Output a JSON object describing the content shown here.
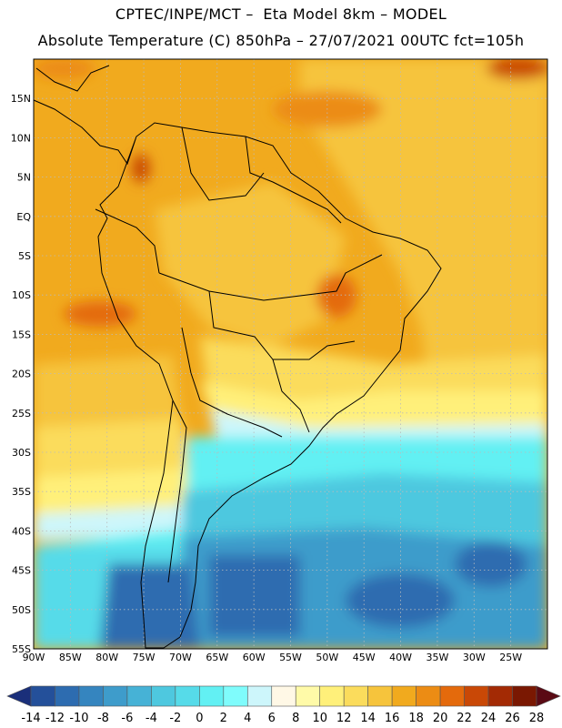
{
  "header": {
    "line1": "CPTEC/INPE/MCT –  Eta Model 8km – MODEL",
    "line2": "Absolute Temperature (C) 850hPa – 27/07/2021 00UTC fct=105h"
  },
  "map": {
    "lon_range": [
      -90,
      -20
    ],
    "lat_range": [
      -55,
      20
    ],
    "lat_ticks": [
      "15N",
      "10N",
      "5N",
      "EQ",
      "5S",
      "10S",
      "15S",
      "20S",
      "25S",
      "30S",
      "35S",
      "40S",
      "45S",
      "50S",
      "55S"
    ],
    "lon_ticks": [
      "90W",
      "85W",
      "80W",
      "75W",
      "70W",
      "65W",
      "60W",
      "55W",
      "50W",
      "45W",
      "40W",
      "35W",
      "30W",
      "25W"
    ]
  },
  "colorbar": {
    "labels": [
      "-14",
      "-12",
      "-10",
      "-8",
      "-6",
      "-4",
      "-2",
      "0",
      "2",
      "4",
      "6",
      "8",
      "10",
      "12",
      "14",
      "16",
      "18",
      "20",
      "22",
      "24",
      "26",
      "28"
    ],
    "colors": [
      "#1a2f7a",
      "#24509a",
      "#2d6cb0",
      "#3585bf",
      "#3e9ccb",
      "#46b2d6",
      "#4ec8df",
      "#56dbe9",
      "#62f0f3",
      "#7ffcfc",
      "#cdf6fb",
      "#fff8e6",
      "#fffaa8",
      "#fff07a",
      "#fbdc5c",
      "#f6c43c",
      "#f1aa1e",
      "#ec8c14",
      "#e46a0c",
      "#c94806",
      "#a32a04",
      "#7a1802",
      "#5a0a14"
    ]
  }
}
